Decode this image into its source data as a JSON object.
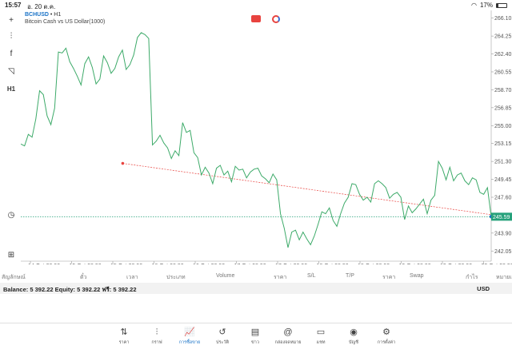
{
  "statusbar": {
    "time": "15:57",
    "date": "อ. 20 ต.ค.",
    "battery": "17%",
    "battery_level": 0.17
  },
  "toolbar": [
    {
      "name": "crosshair-icon",
      "glyph": "+"
    },
    {
      "name": "candles-icon",
      "glyph": "⫶"
    },
    {
      "name": "indicator-icon",
      "glyph": "f"
    },
    {
      "name": "objects-icon",
      "glyph": "◹"
    },
    {
      "name": "timeframe-icon",
      "glyph": "H1"
    },
    {
      "name": "history-icon",
      "glyph": "◷"
    },
    {
      "name": "add-icon",
      "glyph": "⊞"
    }
  ],
  "chart": {
    "symbol": "BCHUSD",
    "timeframe": "• H1",
    "description": "Bitcoin Cash vs US Dollar(1000)",
    "current_price": "245.59",
    "y_ticks": [
      "266.10",
      "264.25",
      "262.40",
      "260.55",
      "258.70",
      "256.85",
      "255.00",
      "253.15",
      "251.30",
      "249.45",
      "247.60",
      "245.75",
      "243.90",
      "242.05"
    ],
    "x_ticks": [
      "14 Oct 20:00",
      "15 Oct 08:00",
      "15 Oct 20:00",
      "16 Oct 08:00",
      "16 Oct 20:00",
      "17 Oct 08:00",
      "17 Oct 20:00",
      "18 Oct 08:00",
      "18 Oct 20:00",
      "19 Oct 08:00",
      "19 Oct 20:00",
      "20 Oct 08:00"
    ]
  },
  "chart_data": {
    "type": "line",
    "title": "BCHUSD",
    "xlabel": "",
    "ylabel": "",
    "ylim": [
      241.0,
      266.9
    ],
    "xlim": [
      0,
      120
    ],
    "grid": false,
    "series": [
      {
        "values": [
          253.1,
          252.9,
          254.1,
          253.8,
          255.7,
          258.6,
          258.2,
          256.0,
          255.1,
          256.8,
          262.6,
          262.5,
          263.0,
          261.6,
          260.9,
          260.1,
          259.2,
          261.4,
          262.1,
          261.0,
          259.3,
          259.8,
          262.2,
          261.5,
          260.4,
          260.9,
          262.1,
          262.8,
          260.8,
          261.3,
          262.3,
          264.1,
          264.6,
          264.4,
          264.0,
          253.0,
          253.4,
          254.0,
          253.2,
          252.7,
          251.6,
          252.4,
          251.9,
          255.3,
          254.3,
          254.5,
          252.2,
          251.7,
          249.9,
          250.7,
          250.1,
          249.0,
          250.6,
          250.9,
          249.9,
          250.3,
          249.2,
          250.8,
          250.4,
          250.5,
          249.6,
          250.2,
          250.5,
          250.6,
          249.8,
          249.5,
          249.1,
          250.0,
          249.4,
          245.9,
          244.4,
          242.4,
          244.0,
          244.2,
          243.2,
          244.0,
          243.3,
          242.7,
          243.6,
          244.8,
          246.1,
          245.9,
          246.5,
          245.2,
          244.6,
          245.9,
          247.0,
          247.6,
          249.0,
          248.9,
          247.9,
          247.3,
          247.6,
          247.1,
          249.0,
          249.3,
          249.0,
          248.6,
          247.5,
          247.9,
          248.1,
          247.6,
          245.3,
          246.7,
          246.0,
          246.4,
          246.9,
          247.4,
          245.9,
          247.3,
          247.8,
          251.3,
          250.6,
          249.4,
          250.7,
          249.3,
          249.9,
          250.1,
          249.3,
          248.9,
          249.6,
          249.4,
          248.1,
          247.9,
          248.6,
          245.6
        ]
      }
    ],
    "trendline": {
      "from": [
        26,
        251.1
      ],
      "to": [
        120,
        245.8
      ],
      "color": "#e8433f"
    },
    "last_price_line": {
      "value": 245.59,
      "color": "#26a17b"
    },
    "line_color": "#3daa69"
  },
  "trade_table": {
    "headers": [
      "สัญลักษณ์",
      "ตั๋ว",
      "เวลา",
      "ประเภท",
      "Volume",
      "ราคา",
      "S/L",
      "T/P",
      "ราคา",
      "Swap",
      "กำไร",
      "หมายเหตุ"
    ]
  },
  "balance": {
    "text": "Balance: 5 392.22 Equity: 5 392.22 ฟรี: 5 392.22",
    "currency": "USD"
  },
  "nav": [
    {
      "name": "nav-quotes",
      "icon": "⇅",
      "label": "ราคา"
    },
    {
      "name": "nav-chart",
      "icon": "⫶",
      "label": "กราฟ"
    },
    {
      "name": "nav-trade",
      "icon": "📈",
      "label": "การซื้อขาย",
      "active": true
    },
    {
      "name": "nav-history",
      "icon": "↺",
      "label": "ประวัติ"
    },
    {
      "name": "nav-news",
      "icon": "▤",
      "label": "ข่าว"
    },
    {
      "name": "nav-mailbox",
      "icon": "@",
      "label": "กล่องจดหมาย"
    },
    {
      "name": "nav-chat",
      "icon": "▭",
      "label": "แชท"
    },
    {
      "name": "nav-accounts",
      "icon": "◉",
      "label": "บัญชี"
    },
    {
      "name": "nav-settings",
      "icon": "⚙",
      "label": "การตั้งค่า"
    }
  ],
  "colors": {
    "accent": "#1a73c7",
    "price_tag": "#26a17b"
  }
}
